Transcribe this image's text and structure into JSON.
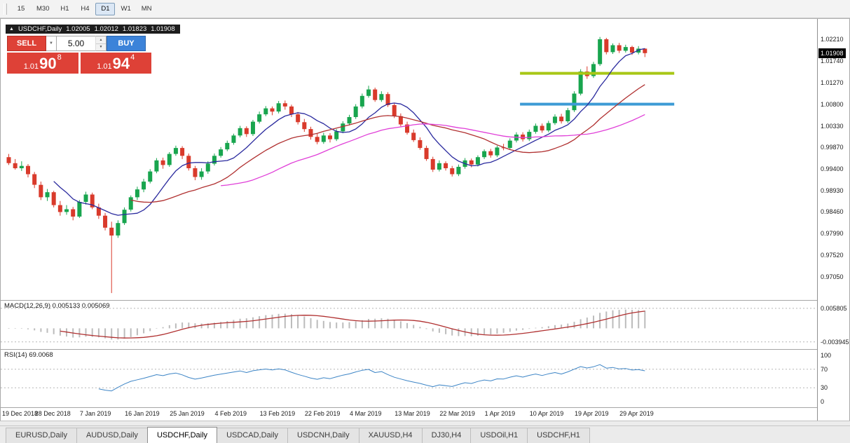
{
  "icons": {
    "ohlc_marker": "▲",
    "dropdown": "▼",
    "spin_up": "▲",
    "spin_down": "▼"
  },
  "toolbar": {
    "timeframes": [
      {
        "label": "15",
        "active": false
      },
      {
        "label": "M30",
        "active": false
      },
      {
        "label": "H1",
        "active": false
      },
      {
        "label": "H4",
        "active": false
      },
      {
        "label": "D1",
        "active": true
      },
      {
        "label": "W1",
        "active": false
      },
      {
        "label": "MN",
        "active": false
      }
    ]
  },
  "chart_info": {
    "symbol": "USDCHF,Daily",
    "open": "1.02005",
    "high": "1.02012",
    "low": "1.01823",
    "close": "1.01908"
  },
  "trade_panel": {
    "sell_label": "SELL",
    "buy_label": "BUY",
    "volume": "5.00",
    "sell_price": {
      "prefix": "1.01",
      "big": "90",
      "sup": "8"
    },
    "buy_price": {
      "prefix": "1.01",
      "big": "94",
      "sup": "4"
    }
  },
  "price_axis": {
    "labels": [
      "1.02210",
      "1.01740",
      "1.01270",
      "1.00800",
      "1.00330",
      "0.99870",
      "0.99400",
      "0.98930",
      "0.98460",
      "0.97990",
      "0.97520",
      "0.97050"
    ],
    "current": "1.01908"
  },
  "macd_panel": {
    "label": "MACD(12,26,9) 0.005133 0.005069",
    "params": "12,26,9",
    "value_main": "0.005133",
    "value_signal": "0.005069",
    "axis_top": "0.005805",
    "axis_bottom": "-0.003945",
    "histogram_color": "#bcbcbc",
    "signal_color": "#b03030"
  },
  "rsi_panel": {
    "label": "RSI(14) 69.0068",
    "period": "14",
    "value": "69.0068",
    "axis_labels": [
      "100",
      "70",
      "30",
      "0"
    ],
    "levels": [
      70,
      30
    ],
    "line_color": "#3d85c6"
  },
  "date_axis": {
    "ticks": [
      {
        "label": "19 Dec 2018",
        "index": 0
      },
      {
        "label": "28 Dec 2018",
        "index": 7
      },
      {
        "label": "7 Jan 2019",
        "index": 14
      },
      {
        "label": "16 Jan 2019",
        "index": 21
      },
      {
        "label": "25 Jan 2019",
        "index": 28
      },
      {
        "label": "4 Feb 2019",
        "index": 35
      },
      {
        "label": "13 Feb 2019",
        "index": 42
      },
      {
        "label": "22 Feb 2019",
        "index": 49
      },
      {
        "label": "4 Mar 2019",
        "index": 56
      },
      {
        "label": "13 Mar 2019",
        "index": 63
      },
      {
        "label": "22 Mar 2019",
        "index": 70
      },
      {
        "label": "1 Apr 2019",
        "index": 77
      },
      {
        "label": "10 Apr 2019",
        "index": 84
      },
      {
        "label": "19 Apr 2019",
        "index": 91
      },
      {
        "label": "29 Apr 2019",
        "index": 98
      }
    ]
  },
  "tabs": [
    {
      "label": "EURUSD,Daily",
      "active": false
    },
    {
      "label": "AUDUSD,Daily",
      "active": false
    },
    {
      "label": "USDCHF,Daily",
      "active": true
    },
    {
      "label": "USDCAD,Daily",
      "active": false
    },
    {
      "label": "USDCNH,Daily",
      "active": false
    },
    {
      "label": "XAUUSD,H4",
      "active": false
    },
    {
      "label": "DJ30,H4",
      "active": false
    },
    {
      "label": "USDOil,H1",
      "active": false
    },
    {
      "label": "USDCHF,H1",
      "active": false
    }
  ],
  "chart_data": {
    "type": "candlestick",
    "symbol": "USDCHF",
    "timeframe": "Daily",
    "title": "USDCHF,Daily",
    "last_ohlc": {
      "open": 1.02005,
      "high": 1.02012,
      "low": 1.01823,
      "close": 1.01908
    },
    "y_axis_range": [
      0.9655,
      1.0262
    ],
    "colors": {
      "up": "#18a54e",
      "down": "#d93a2b",
      "background": "#ffffff"
    },
    "moving_averages": [
      {
        "period": 8,
        "color": "#2a2a9e"
      },
      {
        "period": 20,
        "color": "#b03030"
      },
      {
        "period": 34,
        "color": "#e03fd8"
      }
    ],
    "hlines": [
      {
        "price": 1.0147,
        "color": "#a8c716",
        "from_index": 80,
        "to_index": 104
      },
      {
        "price": 1.008,
        "color": "#3d9bd5",
        "from_index": 80,
        "to_index": 104
      }
    ],
    "candles": [
      [
        0.9965,
        0.9972,
        0.9948,
        0.9952
      ],
      [
        0.9952,
        0.9961,
        0.9938,
        0.9941
      ],
      [
        0.9941,
        0.9956,
        0.9935,
        0.9946
      ],
      [
        0.9946,
        0.995,
        0.9921,
        0.9928
      ],
      [
        0.9928,
        0.9933,
        0.9898,
        0.9905
      ],
      [
        0.9905,
        0.9912,
        0.9872,
        0.9878
      ],
      [
        0.9878,
        0.9896,
        0.987,
        0.9889
      ],
      [
        0.9889,
        0.9892,
        0.9856,
        0.9861
      ],
      [
        0.9861,
        0.987,
        0.9838,
        0.9846
      ],
      [
        0.9846,
        0.9861,
        0.984,
        0.9852
      ],
      [
        0.9852,
        0.9857,
        0.9828,
        0.9836
      ],
      [
        0.9836,
        0.9872,
        0.9833,
        0.9868
      ],
      [
        0.9868,
        0.989,
        0.9862,
        0.9884
      ],
      [
        0.9884,
        0.9888,
        0.9852,
        0.9856
      ],
      [
        0.9856,
        0.9864,
        0.9831,
        0.9838
      ],
      [
        0.9838,
        0.9844,
        0.9806,
        0.9812
      ],
      [
        0.9812,
        0.9825,
        0.967,
        0.9795
      ],
      [
        0.9795,
        0.9828,
        0.979,
        0.9822
      ],
      [
        0.9822,
        0.9856,
        0.9818,
        0.9851
      ],
      [
        0.9851,
        0.9882,
        0.9847,
        0.9878
      ],
      [
        0.9878,
        0.9901,
        0.9872,
        0.9895
      ],
      [
        0.9895,
        0.9918,
        0.9889,
        0.9912
      ],
      [
        0.9912,
        0.9939,
        0.9908,
        0.9934
      ],
      [
        0.9934,
        0.9963,
        0.993,
        0.9958
      ],
      [
        0.9958,
        0.9964,
        0.994,
        0.9948
      ],
      [
        0.9948,
        0.9976,
        0.9944,
        0.9972
      ],
      [
        0.9972,
        0.999,
        0.9968,
        0.9985
      ],
      [
        0.9985,
        0.9989,
        0.9961,
        0.9968
      ],
      [
        0.9968,
        0.9973,
        0.9936,
        0.9941
      ],
      [
        0.9941,
        0.9946,
        0.9915,
        0.9922
      ],
      [
        0.9922,
        0.9941,
        0.9916,
        0.9934
      ],
      [
        0.9934,
        0.9956,
        0.9929,
        0.9951
      ],
      [
        0.9951,
        0.9973,
        0.9947,
        0.9968
      ],
      [
        0.9968,
        0.9987,
        0.9964,
        0.9982
      ],
      [
        0.9982,
        1.0001,
        0.9978,
        0.9996
      ],
      [
        0.9996,
        1.0016,
        0.9992,
        1.0012
      ],
      [
        1.0012,
        1.0033,
        1.0008,
        1.0028
      ],
      [
        1.0028,
        1.0032,
        1.0009,
        1.0015
      ],
      [
        1.0015,
        1.0046,
        1.0011,
        1.0042
      ],
      [
        1.0042,
        1.0064,
        1.0038,
        1.0058
      ],
      [
        1.0058,
        1.0076,
        1.0054,
        1.0071
      ],
      [
        1.0071,
        1.0075,
        1.0056,
        1.0064
      ],
      [
        1.0064,
        1.0087,
        1.006,
        1.0082
      ],
      [
        1.0082,
        1.0088,
        1.0068,
        1.0075
      ],
      [
        1.0075,
        1.0079,
        1.0052,
        1.0058
      ],
      [
        1.0058,
        1.0063,
        1.0036,
        1.0041
      ],
      [
        1.0041,
        1.0048,
        1.002,
        1.0026
      ],
      [
        1.0026,
        1.0031,
        1.0003,
        1.0009
      ],
      [
        1.0009,
        1.0016,
        0.9993,
        0.9998
      ],
      [
        0.9998,
        1.0018,
        0.9994,
        1.0012
      ],
      [
        1.0012,
        1.0017,
        0.9997,
        1.0004
      ],
      [
        1.0004,
        1.0026,
        1.0,
        1.0021
      ],
      [
        1.0021,
        1.0043,
        1.0017,
        1.0038
      ],
      [
        1.0038,
        1.0057,
        1.0034,
        1.0052
      ],
      [
        1.0052,
        1.008,
        1.0048,
        1.0075
      ],
      [
        1.0075,
        1.0103,
        1.0071,
        1.0098
      ],
      [
        1.0098,
        1.012,
        1.0094,
        1.0112
      ],
      [
        1.0112,
        1.0116,
        1.0085,
        1.0089
      ],
      [
        1.0089,
        1.0108,
        1.0085,
        1.0102
      ],
      [
        1.0102,
        1.0106,
        1.0074,
        1.0078
      ],
      [
        1.0078,
        1.0082,
        1.005,
        1.0054
      ],
      [
        1.0054,
        1.006,
        1.0032,
        1.0036
      ],
      [
        1.0036,
        1.0042,
        1.0014,
        1.0018
      ],
      [
        1.0018,
        1.0025,
        0.9998,
        1.0002
      ],
      [
        1.0002,
        1.0008,
        0.9981,
        0.9985
      ],
      [
        0.9985,
        0.999,
        0.9957,
        0.9961
      ],
      [
        0.9961,
        0.9966,
        0.9933,
        0.9938
      ],
      [
        0.9938,
        0.9958,
        0.9934,
        0.9952
      ],
      [
        0.9952,
        0.9956,
        0.9936,
        0.9941
      ],
      [
        0.9941,
        0.9946,
        0.9923,
        0.9928
      ],
      [
        0.9928,
        0.9949,
        0.9924,
        0.9944
      ],
      [
        0.9944,
        0.9963,
        0.994,
        0.9958
      ],
      [
        0.9958,
        0.9962,
        0.9943,
        0.9949
      ],
      [
        0.9949,
        0.9969,
        0.9945,
        0.9965
      ],
      [
        0.9965,
        0.9982,
        0.9961,
        0.9978
      ],
      [
        0.9978,
        0.9983,
        0.9964,
        0.9969
      ],
      [
        0.9969,
        0.999,
        0.9965,
        0.9986
      ],
      [
        0.9986,
        0.9994,
        0.998,
        0.9985
      ],
      [
        0.9985,
        1.0006,
        0.9981,
        1.0001
      ],
      [
        1.0001,
        1.0019,
        0.9997,
        1.0014
      ],
      [
        1.0014,
        1.0019,
        0.9999,
        1.0004
      ],
      [
        1.0004,
        1.0025,
        1.0,
        1.002
      ],
      [
        1.002,
        1.0038,
        1.0016,
        1.0033
      ],
      [
        1.0033,
        1.0038,
        1.0018,
        1.0023
      ],
      [
        1.0023,
        1.0044,
        1.0019,
        1.0039
      ],
      [
        1.0039,
        1.0058,
        1.0035,
        1.0053
      ],
      [
        1.0053,
        1.0059,
        1.0038,
        1.0043
      ],
      [
        1.0043,
        1.0072,
        1.0039,
        1.0067
      ],
      [
        1.0067,
        1.0108,
        1.0063,
        1.0103
      ],
      [
        1.0103,
        1.0156,
        1.0099,
        1.0151
      ],
      [
        1.0151,
        1.0162,
        1.0135,
        1.0141
      ],
      [
        1.0141,
        1.0172,
        1.0137,
        1.0167
      ],
      [
        1.0167,
        1.0226,
        1.0163,
        1.0221
      ],
      [
        1.0221,
        1.0224,
        1.0188,
        1.0193
      ],
      [
        1.0193,
        1.0212,
        1.0189,
        1.0208
      ],
      [
        1.0208,
        1.0213,
        1.0191,
        1.0196
      ],
      [
        1.0196,
        1.0209,
        1.0192,
        1.0204
      ],
      [
        1.0204,
        1.0207,
        1.0187,
        1.0192
      ],
      [
        1.0192,
        1.0206,
        1.0188,
        1.02005
      ],
      [
        1.02005,
        1.02012,
        1.01823,
        1.01908
      ]
    ]
  }
}
